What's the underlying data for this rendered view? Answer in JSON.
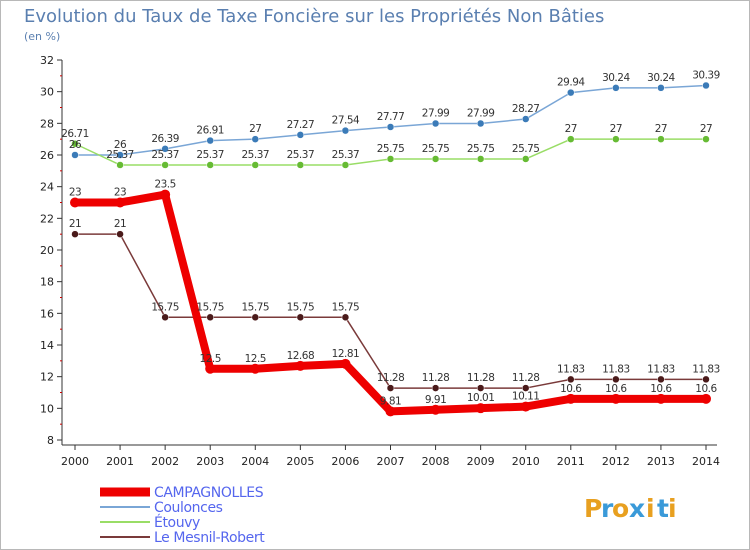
{
  "chart_data": {
    "type": "line",
    "title": "Evolution du Taux de Taxe Foncière sur les Propriétés Non Bâties",
    "subtitle": "(en %)",
    "x": [
      "2000",
      "2001",
      "2002",
      "2003",
      "2004",
      "2005",
      "2006",
      "2007",
      "2008",
      "2009",
      "2010",
      "2011",
      "2012",
      "2013",
      "2014"
    ],
    "ylim": [
      8,
      32
    ],
    "yticks": [
      "8",
      "10",
      "12",
      "14",
      "16",
      "18",
      "20",
      "22",
      "24",
      "26",
      "28",
      "30",
      "32"
    ],
    "grid": false,
    "series": [
      {
        "name": "Coulonces",
        "color": "#7aa6d6",
        "marker": "#3b7bb8",
        "values": [
          26,
          26,
          26.39,
          26.91,
          27,
          27.27,
          27.54,
          27.77,
          27.99,
          27.99,
          28.27,
          29.94,
          30.24,
          30.24,
          30.39
        ],
        "labels": [
          "26",
          "26",
          "26.39",
          "26.91",
          "27",
          "27.27",
          "27.54",
          "27.77",
          "27.99",
          "27.99",
          "28.27",
          "29.94",
          "30.24",
          "30.24",
          "30.39"
        ]
      },
      {
        "name": "Étouvy",
        "color": "#99dd66",
        "marker": "#66bb33",
        "values": [
          26.71,
          25.37,
          25.37,
          25.37,
          25.37,
          25.37,
          25.37,
          25.75,
          25.75,
          25.75,
          25.75,
          27,
          27,
          27,
          27
        ],
        "labels": [
          "26.71",
          "25.37",
          "25.37",
          "25.37",
          "25.37",
          "25.37",
          "25.37",
          "25.75",
          "25.75",
          "25.75",
          "25.75",
          "27",
          "27",
          "27",
          "27"
        ]
      },
      {
        "name": "Le Mesnil-Robert",
        "color": "#7a3a3a",
        "marker": "#4a1a1a",
        "values": [
          21,
          21,
          15.75,
          15.75,
          15.75,
          15.75,
          15.75,
          11.28,
          11.28,
          11.28,
          11.28,
          11.83,
          11.83,
          11.83,
          11.83
        ],
        "labels": [
          "21",
          "21",
          "15.75",
          "15.75",
          "15.75",
          "15.75",
          "15.75",
          "11.28",
          "11.28",
          "11.28",
          "11.28",
          "11.83",
          "11.83",
          "11.83",
          "11.83"
        ]
      },
      {
        "name": "CAMPAGNOLLES",
        "color": "#ee0000",
        "marker": "#ee0000",
        "values": [
          23,
          23,
          23.5,
          12.5,
          12.5,
          12.68,
          12.81,
          9.81,
          9.91,
          10.01,
          10.11,
          10.6,
          10.6,
          10.6,
          10.6
        ],
        "labels": [
          "23",
          "23",
          "23.5",
          "12.5",
          "12.5",
          "12.68",
          "12.81",
          "9.81",
          "9.91",
          "10.01",
          "10.11",
          "10.6",
          "10.6",
          "10.6",
          "10.6"
        ]
      }
    ],
    "legend": [
      {
        "name": "CAMPAGNOLLES",
        "color": "#ee0000"
      },
      {
        "name": "Coulonces",
        "color": "#7aa6d6"
      },
      {
        "name": "Étouvy",
        "color": "#99dd66"
      },
      {
        "name": "Le Mesnil-Robert",
        "color": "#7a3a3a"
      }
    ],
    "legend_position": "bottom-left"
  },
  "brand": {
    "name": "Proxiti",
    "letters": [
      "P",
      "r",
      "o",
      "x",
      "i",
      "t",
      "i"
    ],
    "colors": [
      "#e8a020",
      "#3a9ad9",
      "#e8a020",
      "#3a9ad9",
      "#e8a020",
      "#3a9ad9",
      "#e8a020"
    ]
  },
  "colors": {
    "title": "#5a7fb0",
    "axis": "#333333",
    "legend_text": "#5566ee"
  }
}
